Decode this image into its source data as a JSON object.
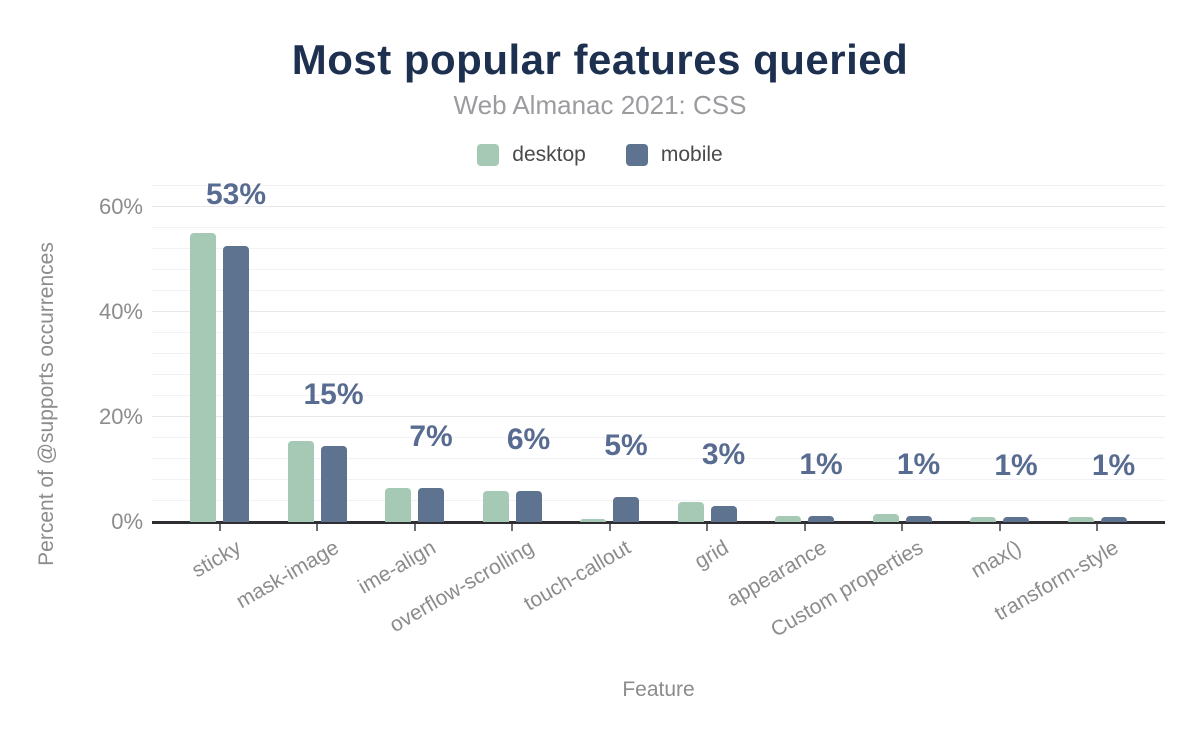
{
  "title": "Most popular features queried",
  "subtitle": "Web Almanac 2021: CSS",
  "legend": [
    {
      "label": "desktop",
      "color": "#a5c9b4"
    },
    {
      "label": "mobile",
      "color": "#5e7390"
    }
  ],
  "colors": {
    "title": "#1d3050",
    "subtitle": "#9b9ba0",
    "axis_text": "#8c8c8e",
    "bar_value_label": "#586b90",
    "desktop_bar": "#a5c9b4",
    "mobile_bar": "#5e7390",
    "axis_line": "#2e2e33",
    "gridline_minor": "#f2f2f6",
    "gridline_major": "#e7e7ec"
  },
  "chart_data": {
    "type": "bar",
    "title": "Most popular features queried",
    "subtitle": "Web Almanac 2021: CSS",
    "xlabel": "Feature",
    "ylabel": "Percent of @supports occurrences",
    "legend_position": "top",
    "grid": "horizontal, minor every 4%, major every 20%",
    "ylim": [
      0,
      64
    ],
    "yticks": {
      "values": [
        0,
        20,
        40,
        60
      ],
      "labels": [
        "0%",
        "20%",
        "40%",
        "60%"
      ]
    },
    "grid_minor_step": 4,
    "categories": [
      "sticky",
      "mask-image",
      "ime-align",
      "overflow-scrolling",
      "touch-callout",
      "grid",
      "appearance",
      "Custom properties",
      "max()",
      "transform-style"
    ],
    "series": [
      {
        "name": "desktop",
        "values": [
          55,
          15.5,
          6.5,
          6,
          0.6,
          3.8,
          1.1,
          1.5,
          1,
          1
        ]
      },
      {
        "name": "mobile",
        "values": [
          52.5,
          14.5,
          6.5,
          6,
          4.7,
          3,
          1.1,
          1.2,
          1,
          1
        ]
      }
    ],
    "bar_value_labels": [
      "53%",
      "15%",
      "7%",
      "6%",
      "5%",
      "3%",
      "1%",
      "1%",
      "1%",
      "1%"
    ]
  }
}
